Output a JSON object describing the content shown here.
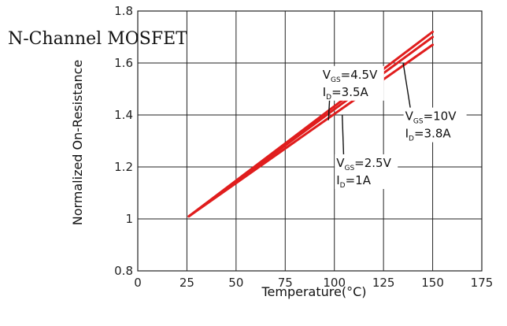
{
  "chart_data": {
    "type": "line",
    "title": "N-Channel MOSFET",
    "xlabel": "Temperature(°C)",
    "ylabel": "Normalized On-Resistance",
    "xlim": [
      0,
      175
    ],
    "ylim": [
      0.8,
      1.8
    ],
    "xticks": [
      0,
      25,
      50,
      75,
      100,
      125,
      150,
      175
    ],
    "yticks": [
      0.8,
      1,
      1.2,
      1.4,
      1.6,
      1.8
    ],
    "xtick_labels": [
      "0",
      "25",
      "50",
      "75",
      "100",
      "125",
      "150",
      "175"
    ],
    "ytick_labels": [
      "0.8",
      "1",
      "1.2",
      "1.4",
      "1.6",
      "1.8"
    ],
    "grid": true,
    "line_color": "#e01d1d",
    "series": [
      {
        "x": [
          26,
          150
        ],
        "y": [
          1.01,
          1.72
        ]
      },
      {
        "x": [
          26,
          150
        ],
        "y": [
          1.01,
          1.7
        ]
      },
      {
        "x": [
          26,
          150
        ],
        "y": [
          1.01,
          1.67
        ]
      }
    ],
    "annotations": [
      {
        "line1_main": "V",
        "line1_sub": "GS",
        "line1_rest": "=4.5V",
        "line2_main": "I",
        "line2_sub": "D",
        "line2_rest": "=3.5A",
        "text_x": 94,
        "text_y": 1.54,
        "arrow_to_x": 97,
        "arrow_to_y": 1.38
      },
      {
        "line1_main": "V",
        "line1_sub": "GS",
        "line1_rest": "=10V",
        "line2_main": "I",
        "line2_sub": "D",
        "line2_rest": "=3.8A",
        "text_x": 136,
        "text_y": 1.38,
        "arrow_to_x": 135,
        "arrow_to_y": 1.6
      },
      {
        "line1_main": "V",
        "line1_sub": "GS",
        "line1_rest": "=2.5V",
        "line2_main": "I",
        "line2_sub": "D",
        "line2_rest": "=1A",
        "text_x": 101,
        "text_y": 1.2,
        "arrow_to_x": 104,
        "arrow_to_y": 1.4
      }
    ]
  }
}
